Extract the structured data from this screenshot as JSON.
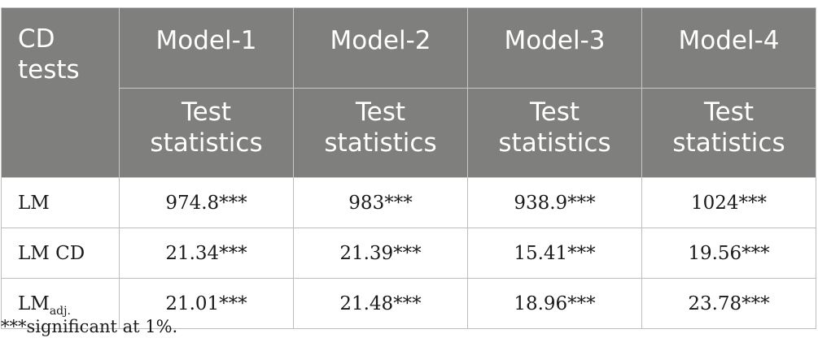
{
  "header": {
    "lead_label_line1": "CD",
    "lead_label_line2": "tests",
    "models": [
      "Model-1",
      "Model-2",
      "Model-3",
      "Model-4"
    ],
    "stat_line1": "Test",
    "stat_line2": "statistics"
  },
  "rows": [
    {
      "label": "LM",
      "label_sub": "",
      "values": [
        "974.8***",
        "983***",
        "938.9***",
        "1024***"
      ]
    },
    {
      "label": "LM CD",
      "label_sub": "",
      "values": [
        "21.34***",
        "21.39***",
        "15.41***",
        "19.56***"
      ]
    },
    {
      "label": "LM",
      "label_sub": "adj.",
      "values": [
        "21.01***",
        "21.48***",
        "18.96***",
        "23.78***"
      ]
    }
  ],
  "footnote": "***significant at 1%."
}
